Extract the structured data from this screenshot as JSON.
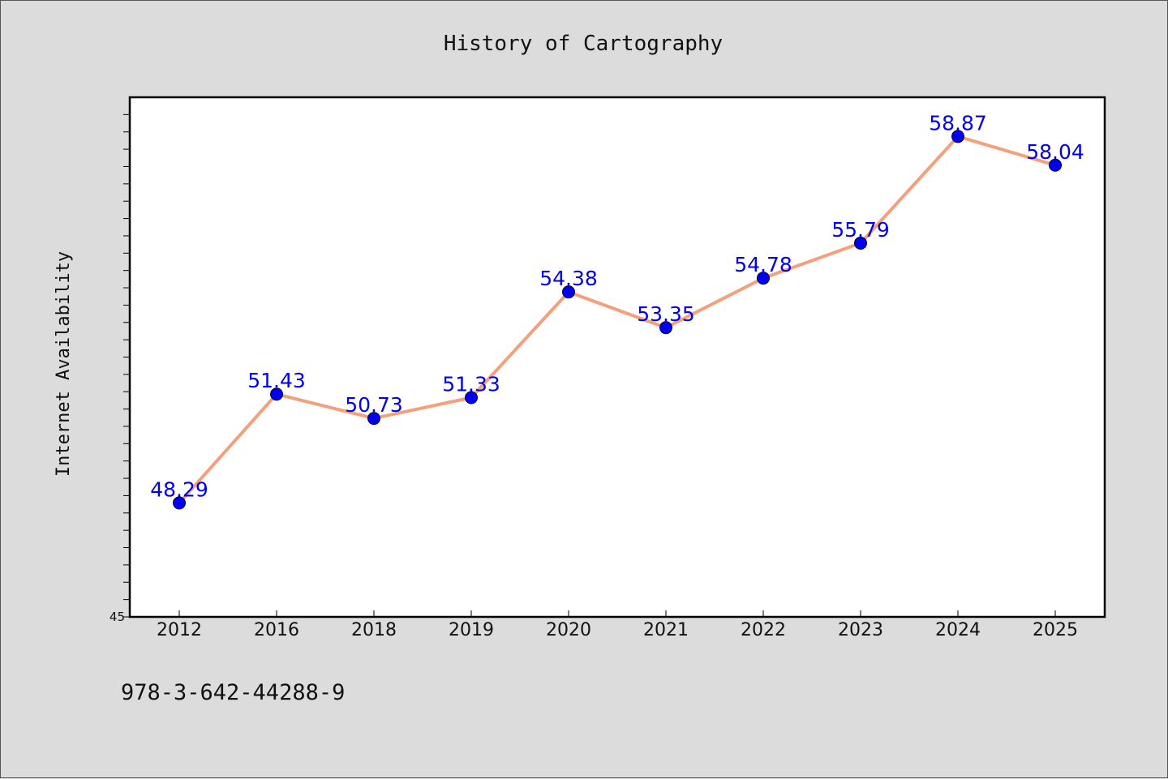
{
  "chart_data": {
    "type": "line",
    "title": "History of Cartography",
    "xlabel": "",
    "ylabel": "Internet Availability",
    "categories": [
      "2012",
      "2016",
      "2018",
      "2019",
      "2020",
      "2021",
      "2022",
      "2023",
      "2024",
      "2025"
    ],
    "series": [
      {
        "values": [
          48.29,
          51.43,
          50.73,
          51.33,
          54.38,
          53.35,
          54.78,
          55.79,
          58.87,
          58.04
        ],
        "labels": [
          "48.29",
          "51.43",
          "50.73",
          "51.33",
          "54.38",
          "53.35",
          "54.78",
          "55.79",
          "58.87",
          "58.04"
        ]
      }
    ],
    "ylim": [
      45,
      60
    ],
    "y_tick_labels": [
      "45"
    ],
    "grid": false,
    "colors": {
      "line": "#f4a07c",
      "marker": "#0000ee",
      "data_label": "#0000ee"
    }
  },
  "footer": {
    "isbn": "978-3-642-44288-9"
  }
}
